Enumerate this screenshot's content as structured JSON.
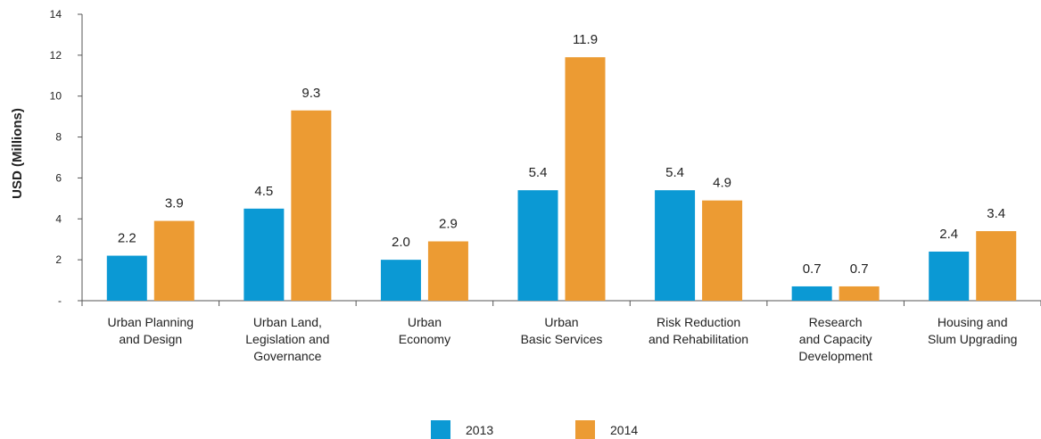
{
  "chart_data": {
    "type": "bar",
    "ylabel": "USD (Millions)",
    "ylim": [
      0,
      14
    ],
    "yticks": [
      "-",
      "2",
      "4",
      "6",
      "8",
      "10",
      "12",
      "14"
    ],
    "ytick_values": [
      0,
      2,
      4,
      6,
      8,
      10,
      12,
      14
    ],
    "grid": false,
    "legend_position": "bottom-center",
    "categories": [
      [
        "Urban Planning",
        "and Design"
      ],
      [
        "Urban Land,",
        "Legislation and",
        "Governance"
      ],
      [
        "Urban",
        "Economy"
      ],
      [
        "Urban",
        "Basic Services"
      ],
      [
        "Risk Reduction",
        "and Rehabilitation"
      ],
      [
        "Research",
        "and Capacity",
        "Development"
      ],
      [
        "Housing and",
        "Slum Upgrading"
      ]
    ],
    "series": [
      {
        "name": "2013",
        "color": "#0b99d4",
        "values": [
          2.2,
          4.5,
          2.0,
          5.4,
          5.4,
          0.7,
          2.4
        ],
        "labels": [
          "2.2",
          "4.5",
          "2.0",
          "5.4",
          "5.4",
          "0.7",
          "2.4"
        ]
      },
      {
        "name": "2014",
        "color": "#ec9b33",
        "values": [
          3.9,
          9.3,
          2.9,
          11.9,
          4.9,
          0.7,
          3.4
        ],
        "labels": [
          "3.9",
          "9.3",
          "2.9",
          "11.9",
          "4.9",
          "0.7",
          "3.4"
        ]
      }
    ]
  }
}
